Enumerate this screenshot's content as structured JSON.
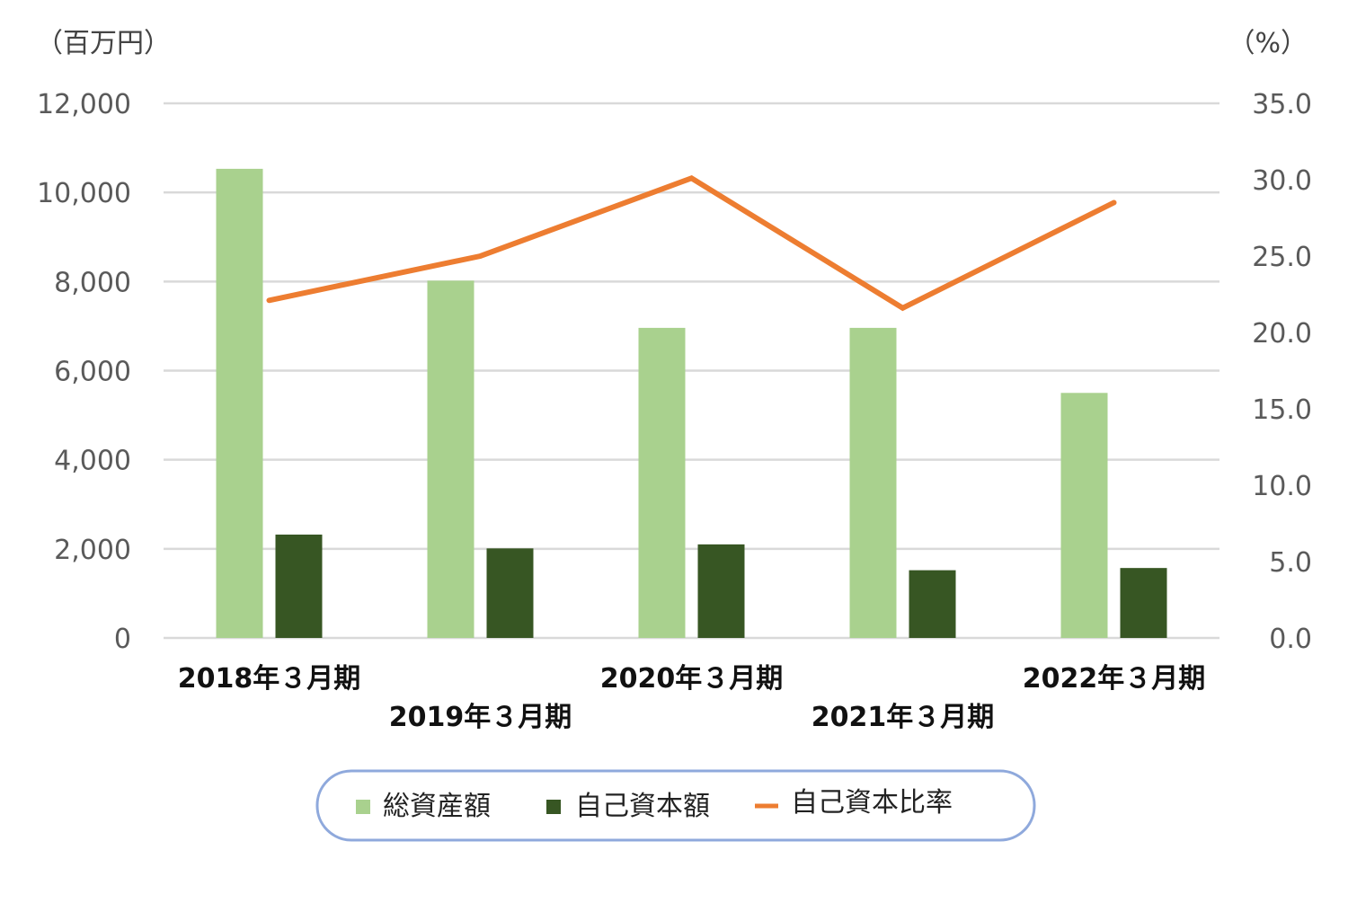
{
  "chart_data": {
    "type": "bar",
    "categories": [
      "2018年３月期",
      "2019年３月期",
      "2020年３月期",
      "2021年３月期",
      "2022年３月期"
    ],
    "series": [
      {
        "name": "総資産額",
        "type": "bar",
        "axis": "left",
        "color": "#a9d18e",
        "values": [
          10530,
          8020,
          6960,
          6960,
          5500
        ]
      },
      {
        "name": "自己資本額",
        "type": "bar",
        "axis": "left",
        "color": "#375623",
        "values": [
          2320,
          2010,
          2100,
          1520,
          1570
        ]
      },
      {
        "name": "自己資本比率",
        "type": "line",
        "axis": "right",
        "color": "#ed7d31",
        "values": [
          22.1,
          25.0,
          30.1,
          21.6,
          28.5
        ]
      }
    ],
    "y_left": {
      "unit": "（百万円）",
      "ylim": [
        0,
        12000
      ],
      "ticks": [
        "0",
        "2,000",
        "4,000",
        "6,000",
        "8,000",
        "10,000",
        "12,000"
      ]
    },
    "y_right": {
      "unit": "（%）",
      "ylim": [
        0,
        35
      ],
      "ticks": [
        "0.0",
        "5.0",
        "10.0",
        "15.0",
        "20.0",
        "25.0",
        "30.0",
        "35.0"
      ]
    },
    "grid": true,
    "legend_position": "bottom"
  }
}
